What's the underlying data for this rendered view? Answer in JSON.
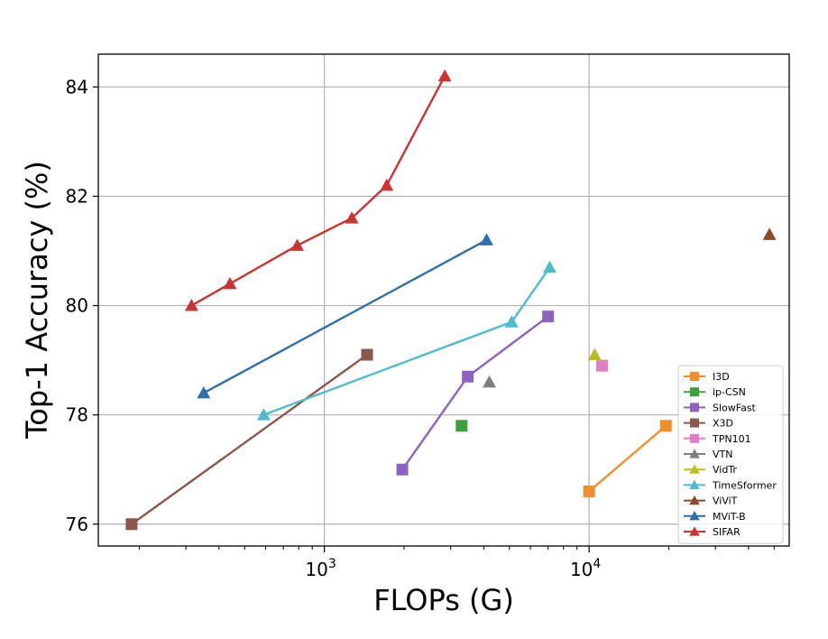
{
  "chart_data": {
    "type": "scatter",
    "title": "",
    "xlabel": "FLOPs (G)",
    "ylabel": "Top-1 Accuracy (%)",
    "xscale": "log",
    "xlim": [
      140,
      57000
    ],
    "ylim": [
      75.6,
      84.6
    ],
    "grid": true,
    "legend_position": "lower-right",
    "x_ticks": [
      {
        "value": 1000,
        "base": "10",
        "exp": "3"
      },
      {
        "value": 10000,
        "base": "10",
        "exp": "4"
      }
    ],
    "y_ticks": [
      {
        "value": 76,
        "label": "76"
      },
      {
        "value": 78,
        "label": "78"
      },
      {
        "value": 80,
        "label": "80"
      },
      {
        "value": 82,
        "label": "82"
      },
      {
        "value": 84,
        "label": "84"
      }
    ],
    "series": [
      {
        "name": "I3D",
        "marker": "square",
        "color": "#f28e2b",
        "points": [
          [
            10000,
            76.6
          ],
          [
            19500,
            77.8
          ]
        ]
      },
      {
        "name": "ip-CSN",
        "marker": "square",
        "color": "#3ba03b",
        "points": [
          [
            3300,
            77.8
          ]
        ]
      },
      {
        "name": "SlowFast",
        "marker": "square",
        "color": "#8c62c2",
        "points": [
          [
            1970,
            77.0
          ],
          [
            3480,
            78.7
          ],
          [
            7000,
            79.8
          ]
        ]
      },
      {
        "name": "X3D",
        "marker": "square",
        "color": "#8c564b",
        "points": [
          [
            187,
            76.0
          ],
          [
            1450,
            79.1
          ]
        ]
      },
      {
        "name": "TPN101",
        "marker": "square",
        "color": "#e07fc7",
        "points": [
          [
            11200,
            78.9
          ]
        ]
      },
      {
        "name": "VTN",
        "marker": "triangle",
        "color": "#7f7f7f",
        "points": [
          [
            4200,
            78.6
          ]
        ]
      },
      {
        "name": "VidTr",
        "marker": "triangle",
        "color": "#bcbd22",
        "points": [
          [
            10500,
            79.1
          ]
        ]
      },
      {
        "name": "TimeSformer",
        "marker": "triangle",
        "color": "#4fbccd",
        "points": [
          [
            590,
            78.0
          ],
          [
            5100,
            79.7
          ],
          [
            7100,
            80.7
          ]
        ]
      },
      {
        "name": "ViViT",
        "marker": "triangle",
        "color": "#8c4a28",
        "points": [
          [
            48000,
            81.3
          ]
        ]
      },
      {
        "name": "MViT-B",
        "marker": "triangle",
        "color": "#2f6fad",
        "points": [
          [
            350,
            78.4
          ],
          [
            4100,
            81.2
          ]
        ]
      },
      {
        "name": "SIFAR",
        "marker": "triangle",
        "color": "#cc3333",
        "points": [
          [
            315,
            80.0
          ],
          [
            440,
            80.4
          ],
          [
            790,
            81.1
          ],
          [
            1270,
            81.6
          ],
          [
            1720,
            82.2
          ],
          [
            2850,
            84.2
          ]
        ]
      }
    ]
  }
}
